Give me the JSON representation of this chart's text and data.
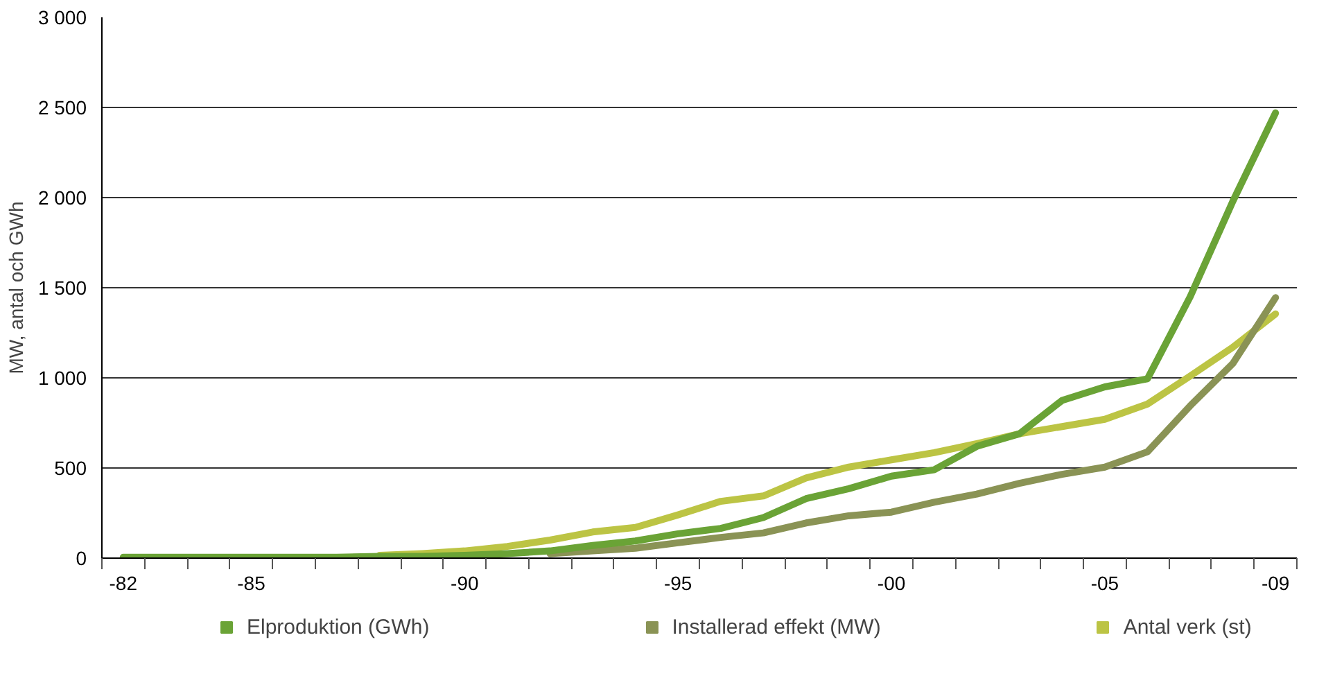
{
  "chart_data": {
    "type": "line",
    "ylabel": "MW, antal och GWh",
    "categories": [
      "-82",
      null,
      null,
      "-85",
      null,
      null,
      null,
      null,
      "-90",
      null,
      null,
      null,
      null,
      "-95",
      null,
      null,
      null,
      null,
      "-00",
      null,
      null,
      null,
      null,
      "-05",
      null,
      null,
      null,
      "-09"
    ],
    "series": [
      {
        "name": "Elproduktion (GWh)",
        "color": "#6aa336",
        "values": [
          5,
          5,
          5,
          5,
          5,
          5,
          10,
          10,
          15,
          25,
          40,
          70,
          95,
          135,
          165,
          225,
          330,
          385,
          455,
          490,
          620,
          690,
          875,
          950,
          995,
          1450,
          1980,
          2470
        ]
      },
      {
        "name": "Installerad effekt (MW)",
        "color": "#8a9355",
        "values": [
          null,
          null,
          null,
          null,
          null,
          null,
          null,
          null,
          null,
          null,
          25,
          40,
          55,
          85,
          115,
          140,
          195,
          235,
          255,
          310,
          355,
          415,
          465,
          505,
          590,
          845,
          1080,
          1445
        ]
      },
      {
        "name": "Antal verk (st)",
        "color": "#bcc444",
        "values": [
          null,
          null,
          null,
          null,
          null,
          null,
          15,
          25,
          40,
          65,
          100,
          145,
          170,
          240,
          315,
          345,
          445,
          505,
          545,
          585,
          635,
          690,
          730,
          770,
          855,
          1010,
          1170,
          1355
        ]
      }
    ],
    "ylim": [
      0,
      3000
    ],
    "yticks": [
      0,
      {
        "value": 500,
        "label": "500"
      },
      {
        "value": 1000,
        "label": "1 000"
      },
      {
        "value": 1500,
        "label": "1 500"
      },
      {
        "value": 2000,
        "label": "2 000"
      },
      {
        "value": 2500,
        "label": "2 500"
      },
      {
        "value": 3000,
        "label": "3 000"
      }
    ],
    "grid": "y",
    "legend": "bottom",
    "marker": "none",
    "line_style": "solid"
  }
}
